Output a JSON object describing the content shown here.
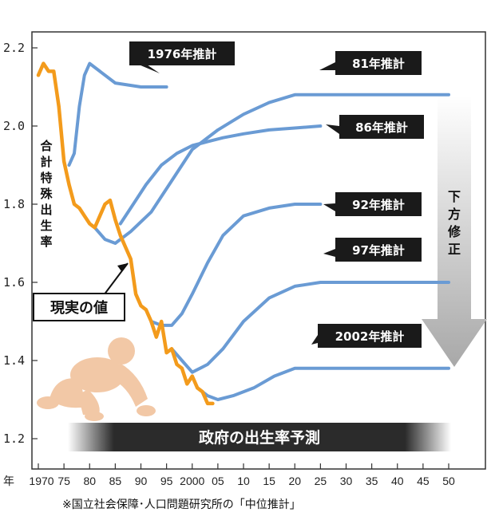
{
  "chart_data": {
    "type": "line",
    "ylabel": "合計特殊出生率",
    "ylim": [
      1.2,
      2.2
    ],
    "yticks": [
      "1.2",
      "1.4",
      "1.6",
      "1.8",
      "2.0",
      "2.2"
    ],
    "xlim": [
      1970,
      2050
    ],
    "x_year_prefix": "年",
    "xticks": [
      "1970",
      "75",
      "80",
      "85",
      "90",
      "95",
      "2000",
      "05",
      "10",
      "15",
      "20",
      "25",
      "30",
      "35",
      "40",
      "45",
      "50"
    ],
    "xtick_values": [
      1970,
      1975,
      1980,
      1985,
      1990,
      1995,
      2000,
      2005,
      2010,
      2015,
      2020,
      2025,
      2030,
      2035,
      2040,
      2045,
      2050
    ],
    "grid": false,
    "series": [
      {
        "name": "現実の値",
        "color": "#f39b1c",
        "x": [
          1970,
          1971,
          1972,
          1973,
          1974,
          1975,
          1976,
          1977,
          1978,
          1979,
          1980,
          1981,
          1982,
          1983,
          1984,
          1985,
          1986,
          1987,
          1988,
          1989,
          1990,
          1991,
          1992,
          1993,
          1994,
          1995,
          1996,
          1997,
          1998,
          1999,
          2000,
          2001,
          2002,
          2003,
          2004
        ],
        "y": [
          2.13,
          2.16,
          2.14,
          2.14,
          2.05,
          1.91,
          1.85,
          1.8,
          1.79,
          1.77,
          1.75,
          1.74,
          1.77,
          1.8,
          1.81,
          1.76,
          1.72,
          1.69,
          1.66,
          1.57,
          1.54,
          1.53,
          1.5,
          1.46,
          1.5,
          1.42,
          1.43,
          1.39,
          1.38,
          1.34,
          1.36,
          1.33,
          1.32,
          1.29,
          1.29
        ]
      },
      {
        "name": "1976年推計",
        "color": "#6a9bd4",
        "x": [
          1976,
          1977,
          1978,
          1979,
          1980,
          1982,
          1985,
          1990,
          1995
        ],
        "y": [
          1.9,
          1.93,
          2.05,
          2.13,
          2.16,
          2.14,
          2.11,
          2.1,
          2.1
        ]
      },
      {
        "name": "81年推計",
        "color": "#6a9bd4",
        "x": [
          1981,
          1983,
          1985,
          1988,
          1992,
          1996,
          2000,
          2005,
          2010,
          2015,
          2020,
          2025,
          2030,
          2040,
          2050
        ],
        "y": [
          1.74,
          1.71,
          1.7,
          1.73,
          1.78,
          1.86,
          1.94,
          1.99,
          2.03,
          2.06,
          2.08,
          2.08,
          2.08,
          2.08,
          2.08
        ]
      },
      {
        "name": "86年推計",
        "color": "#6a9bd4",
        "x": [
          1986,
          1988,
          1991,
          1994,
          1997,
          2000,
          2003,
          2006,
          2010,
          2015,
          2020,
          2025
        ],
        "y": [
          1.75,
          1.79,
          1.85,
          1.9,
          1.93,
          1.95,
          1.96,
          1.97,
          1.98,
          1.99,
          1.995,
          2.0
        ]
      },
      {
        "name": "92年推計",
        "color": "#6a9bd4",
        "x": [
          1992,
          1994,
          1996,
          1998,
          2000,
          2003,
          2006,
          2010,
          2015,
          2020,
          2025
        ],
        "y": [
          1.5,
          1.49,
          1.49,
          1.52,
          1.57,
          1.65,
          1.72,
          1.77,
          1.79,
          1.8,
          1.8
        ]
      },
      {
        "name": "97年推計",
        "color": "#6a9bd4",
        "x": [
          1996,
          1998,
          2000,
          2003,
          2006,
          2010,
          2015,
          2020,
          2025,
          2030,
          2040,
          2050
        ],
        "y": [
          1.43,
          1.4,
          1.37,
          1.39,
          1.43,
          1.5,
          1.56,
          1.59,
          1.6,
          1.6,
          1.6,
          1.6
        ]
      },
      {
        "name": "2002年推計",
        "color": "#6a9bd4",
        "x": [
          2001,
          2003,
          2005,
          2008,
          2012,
          2016,
          2020,
          2025,
          2030,
          2040,
          2050
        ],
        "y": [
          1.33,
          1.31,
          1.3,
          1.31,
          1.33,
          1.36,
          1.38,
          1.38,
          1.38,
          1.38,
          1.38
        ]
      }
    ],
    "annotations": {
      "actual_label": "現実の値",
      "banner": "政府の出生率予測",
      "downward_revision": "下方修正",
      "footnote": "※国立社会保障･人口問題研究所の「中位推計」"
    }
  }
}
